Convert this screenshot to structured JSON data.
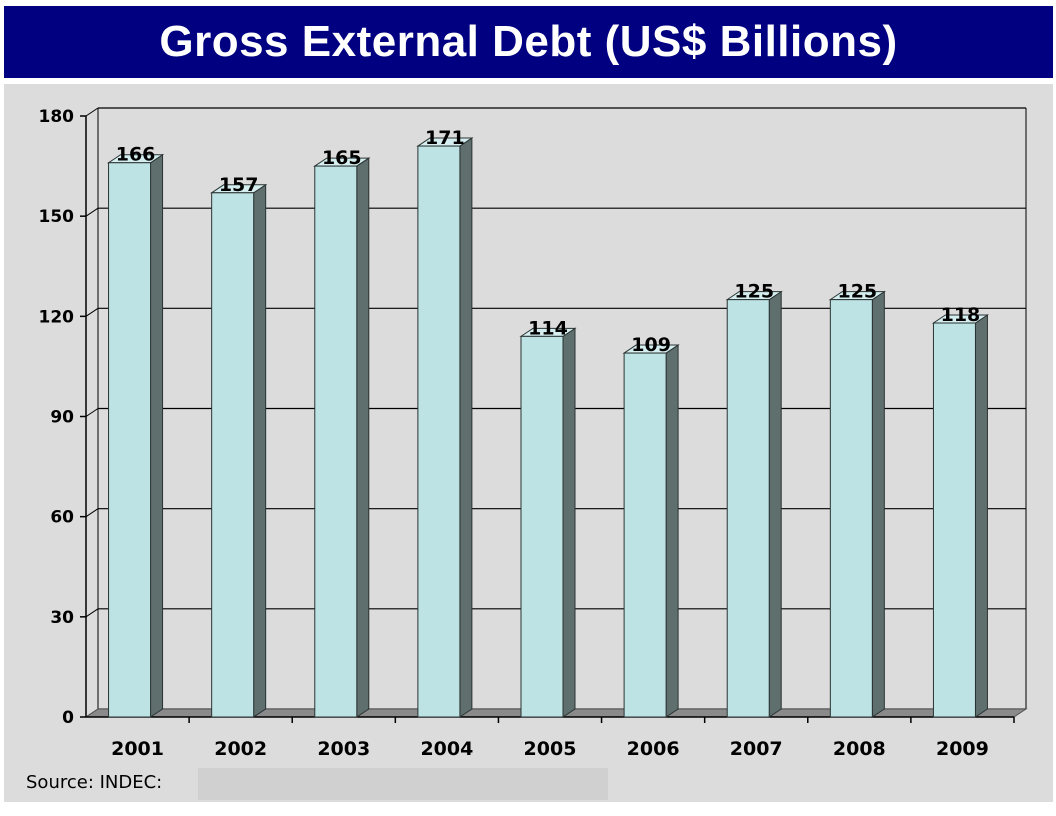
{
  "chart_data": {
    "type": "bar",
    "title": "Gross External Debt (US$ Billions)",
    "categories": [
      "2001",
      "2002",
      "2003",
      "2004",
      "2005",
      "2006",
      "2007",
      "2008",
      "2009"
    ],
    "values": [
      166,
      157,
      165,
      171,
      114,
      109,
      125,
      125,
      118
    ],
    "data_labels": [
      "166",
      "157",
      "165",
      "171",
      "114",
      "109",
      "125",
      "125",
      "118"
    ],
    "yticks": [
      "0",
      "30",
      "60",
      "90",
      "120",
      "150",
      "180"
    ],
    "ylim": [
      0,
      180
    ],
    "grid": true,
    "legend": "none",
    "three_d": true
  },
  "colors": {
    "title_bg": "#000080",
    "title_text": "#ffffff",
    "plot_bg": "#dcdcdc",
    "bar_front": "#bde3e5",
    "bar_side": "#5f6f6e",
    "bar_top": "#d5eeef",
    "floor": "#8a8a8a",
    "grid": "#000000"
  },
  "footer": {
    "source": "Source: INDEC:"
  }
}
